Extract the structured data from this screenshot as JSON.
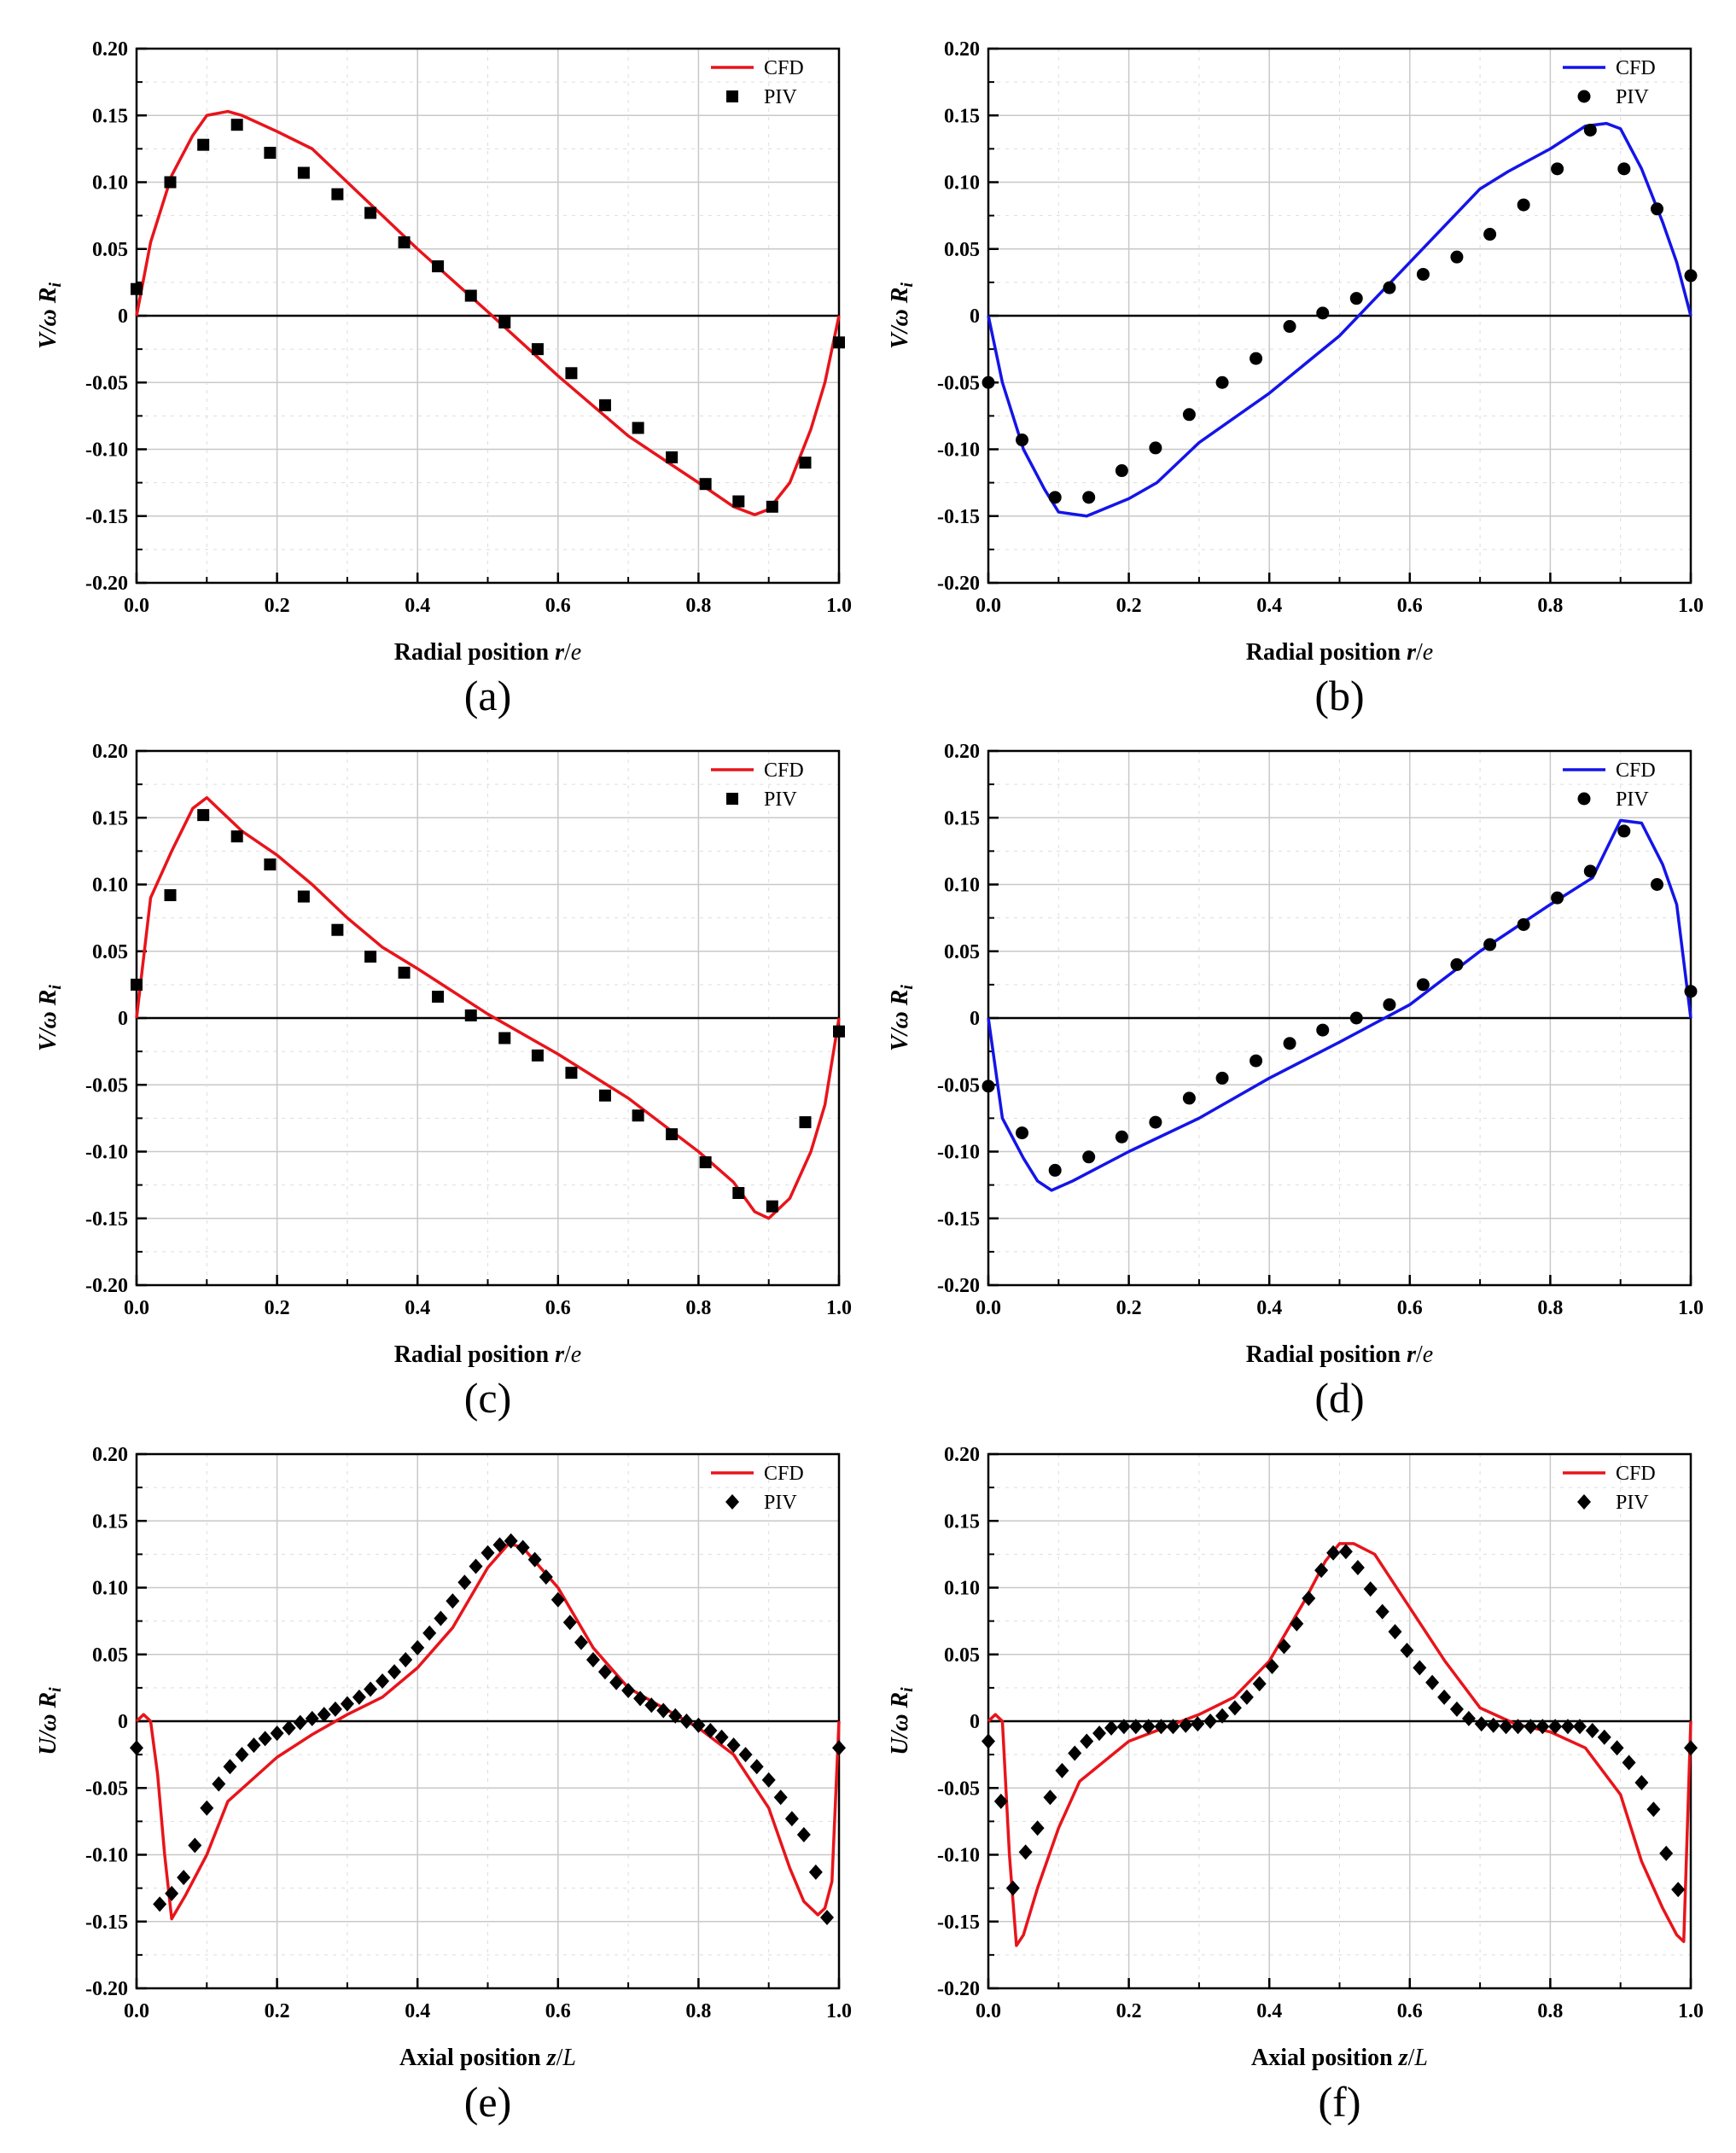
{
  "chart_data": [
    {
      "type": "line",
      "panel_label": "(a)",
      "xlabel": "Radial position r/e",
      "ylabel": "V/ω R_i",
      "xlim": [
        0.0,
        1.0
      ],
      "ylim": [
        -0.2,
        0.2
      ],
      "x_ticks": [
        "0.0",
        "0.2",
        "0.4",
        "0.6",
        "0.8",
        "1.0"
      ],
      "y_ticks": [
        "0.20",
        "0.15",
        "0.10",
        "0.05",
        "0",
        "-0.05",
        "-0.10",
        "-0.15",
        "-0.20"
      ],
      "grid": true,
      "legend_position": "top-right",
      "series": [
        {
          "name": "CFD",
          "kind": "line",
          "color": "#e8141b",
          "x": [
            0,
            0.02,
            0.05,
            0.08,
            0.1,
            0.13,
            0.15,
            0.2,
            0.25,
            0.3,
            0.4,
            0.5,
            0.6,
            0.7,
            0.8,
            0.85,
            0.88,
            0.9,
            0.93,
            0.96,
            0.98,
            1.0
          ],
          "y": [
            0,
            0.055,
            0.105,
            0.135,
            0.15,
            0.153,
            0.15,
            0.138,
            0.125,
            0.1,
            0.05,
            0.003,
            -0.045,
            -0.09,
            -0.125,
            -0.143,
            -0.149,
            -0.145,
            -0.125,
            -0.085,
            -0.05,
            0
          ]
        },
        {
          "name": "PIV",
          "kind": "scatter",
          "marker": "square",
          "color": "#000000",
          "x": [
            0.0,
            0.048,
            0.095,
            0.143,
            0.19,
            0.238,
            0.286,
            0.333,
            0.381,
            0.429,
            0.476,
            0.524,
            0.571,
            0.619,
            0.667,
            0.714,
            0.762,
            0.81,
            0.857,
            0.905,
            0.952,
            1.0
          ],
          "y": [
            0.02,
            0.1,
            0.128,
            0.143,
            0.122,
            0.107,
            0.091,
            0.077,
            0.055,
            0.037,
            0.015,
            -0.005,
            -0.025,
            -0.043,
            -0.067,
            -0.084,
            -0.106,
            -0.126,
            -0.139,
            -0.143,
            -0.11,
            -0.02
          ]
        }
      ]
    },
    {
      "type": "line",
      "panel_label": "(b)",
      "xlabel": "Radial position r/e",
      "ylabel": "V/ω R_i",
      "xlim": [
        0.0,
        1.0
      ],
      "ylim": [
        -0.2,
        0.2
      ],
      "x_ticks": [
        "0.0",
        "0.2",
        "0.4",
        "0.6",
        "0.8",
        "1.0"
      ],
      "y_ticks": [
        "0.20",
        "0.15",
        "0.10",
        "0.05",
        "0",
        "-0.05",
        "-0.10",
        "-0.15",
        "-0.20"
      ],
      "grid": true,
      "legend_position": "top-right",
      "series": [
        {
          "name": "CFD",
          "kind": "line",
          "color": "#1414e8",
          "x": [
            0,
            0.02,
            0.05,
            0.08,
            0.1,
            0.14,
            0.2,
            0.24,
            0.3,
            0.4,
            0.5,
            0.6,
            0.7,
            0.74,
            0.8,
            0.85,
            0.88,
            0.9,
            0.93,
            0.96,
            0.98,
            1.0
          ],
          "y": [
            0,
            -0.05,
            -0.1,
            -0.13,
            -0.147,
            -0.15,
            -0.137,
            -0.125,
            -0.095,
            -0.058,
            -0.015,
            0.04,
            0.095,
            0.108,
            0.125,
            0.142,
            0.144,
            0.14,
            0.11,
            0.07,
            0.04,
            0
          ]
        },
        {
          "name": "PIV",
          "kind": "scatter",
          "marker": "circle",
          "color": "#000000",
          "x": [
            0.0,
            0.048,
            0.095,
            0.143,
            0.19,
            0.238,
            0.286,
            0.333,
            0.381,
            0.429,
            0.476,
            0.524,
            0.571,
            0.619,
            0.667,
            0.714,
            0.762,
            0.81,
            0.857,
            0.905,
            0.952,
            1.0
          ],
          "y": [
            -0.05,
            -0.093,
            -0.136,
            -0.136,
            -0.116,
            -0.099,
            -0.074,
            -0.05,
            -0.032,
            -0.008,
            0.002,
            0.013,
            0.021,
            0.031,
            0.044,
            0.061,
            0.083,
            0.11,
            0.139,
            0.11,
            0.08,
            0.03
          ]
        }
      ]
    },
    {
      "type": "line",
      "panel_label": "(c)",
      "xlabel": "Radial position r/e",
      "ylabel": "V/ω R_i",
      "xlim": [
        0.0,
        1.0
      ],
      "ylim": [
        -0.2,
        0.2
      ],
      "x_ticks": [
        "0.0",
        "0.2",
        "0.4",
        "0.6",
        "0.8",
        "1.0"
      ],
      "y_ticks": [
        "0.20",
        "0.15",
        "0.10",
        "0.05",
        "0",
        "-0.05",
        "-0.10",
        "-0.15",
        "-0.20"
      ],
      "grid": true,
      "legend_position": "top-right",
      "series": [
        {
          "name": "CFD",
          "kind": "line",
          "color": "#e8141b",
          "x": [
            0,
            0.02,
            0.05,
            0.08,
            0.1,
            0.12,
            0.15,
            0.2,
            0.25,
            0.3,
            0.35,
            0.4,
            0.5,
            0.6,
            0.7,
            0.8,
            0.85,
            0.88,
            0.9,
            0.93,
            0.96,
            0.98,
            1.0
          ],
          "y": [
            0,
            0.09,
            0.125,
            0.157,
            0.165,
            0.155,
            0.14,
            0.122,
            0.1,
            0.075,
            0.053,
            0.037,
            0.003,
            -0.027,
            -0.06,
            -0.1,
            -0.123,
            -0.145,
            -0.15,
            -0.135,
            -0.1,
            -0.065,
            0
          ]
        },
        {
          "name": "PIV",
          "kind": "scatter",
          "marker": "square",
          "color": "#000000",
          "x": [
            0.0,
            0.048,
            0.095,
            0.143,
            0.19,
            0.238,
            0.286,
            0.333,
            0.381,
            0.429,
            0.476,
            0.524,
            0.571,
            0.619,
            0.667,
            0.714,
            0.762,
            0.81,
            0.857,
            0.905,
            0.952,
            1.0
          ],
          "y": [
            0.025,
            0.092,
            0.152,
            0.136,
            0.115,
            0.091,
            0.066,
            0.046,
            0.034,
            0.016,
            0.002,
            -0.015,
            -0.028,
            -0.041,
            -0.058,
            -0.073,
            -0.087,
            -0.108,
            -0.131,
            -0.141,
            -0.078,
            -0.01
          ]
        }
      ]
    },
    {
      "type": "line",
      "panel_label": "(d)",
      "xlabel": "Radial position r/e",
      "ylabel": "V/ω R_i",
      "xlim": [
        0.0,
        1.0
      ],
      "ylim": [
        -0.2,
        0.2
      ],
      "x_ticks": [
        "0.0",
        "0.2",
        "0.4",
        "0.6",
        "0.8",
        "1.0"
      ],
      "y_ticks": [
        "0.20",
        "0.15",
        "0.10",
        "0.05",
        "0",
        "-0.05",
        "-0.10",
        "-0.15",
        "-0.20"
      ],
      "grid": true,
      "legend_position": "top-right",
      "series": [
        {
          "name": "CFD",
          "kind": "line",
          "color": "#1414e8",
          "x": [
            0,
            0.02,
            0.05,
            0.07,
            0.09,
            0.12,
            0.2,
            0.3,
            0.4,
            0.5,
            0.55,
            0.6,
            0.7,
            0.8,
            0.86,
            0.9,
            0.93,
            0.96,
            0.98,
            1.0
          ],
          "y": [
            0,
            -0.075,
            -0.105,
            -0.122,
            -0.129,
            -0.122,
            -0.1,
            -0.075,
            -0.045,
            -0.018,
            -0.004,
            0.01,
            0.05,
            0.085,
            0.105,
            0.148,
            0.146,
            0.115,
            0.085,
            0
          ]
        },
        {
          "name": "PIV",
          "kind": "scatter",
          "marker": "circle",
          "color": "#000000",
          "x": [
            0.0,
            0.048,
            0.095,
            0.143,
            0.19,
            0.238,
            0.286,
            0.333,
            0.381,
            0.429,
            0.476,
            0.524,
            0.571,
            0.619,
            0.667,
            0.714,
            0.762,
            0.81,
            0.857,
            0.905,
            0.952,
            1.0
          ],
          "y": [
            -0.051,
            -0.086,
            -0.114,
            -0.104,
            -0.089,
            -0.078,
            -0.06,
            -0.045,
            -0.032,
            -0.019,
            -0.009,
            0.0,
            0.01,
            0.025,
            0.04,
            0.055,
            0.07,
            0.09,
            0.11,
            0.14,
            0.1,
            0.02
          ]
        }
      ]
    },
    {
      "type": "line",
      "panel_label": "(e)",
      "xlabel": "Axial position z/L",
      "ylabel": "U/ω R_i",
      "xlim": [
        0.0,
        1.0
      ],
      "ylim": [
        -0.2,
        0.2
      ],
      "x_ticks": [
        "0.0",
        "0.2",
        "0.4",
        "0.6",
        "0.8",
        "1.0"
      ],
      "y_ticks": [
        "0.20",
        "0.15",
        "0.10",
        "0.05",
        "0",
        "-0.05",
        "-0.10",
        "-0.15",
        "-0.20"
      ],
      "grid": true,
      "legend_position": "top-right",
      "series": [
        {
          "name": "CFD",
          "kind": "line",
          "color": "#e8141b",
          "x": [
            0,
            0.01,
            0.02,
            0.03,
            0.04,
            0.05,
            0.07,
            0.1,
            0.13,
            0.2,
            0.25,
            0.3,
            0.35,
            0.4,
            0.45,
            0.5,
            0.53,
            0.55,
            0.6,
            0.65,
            0.7,
            0.75,
            0.8,
            0.85,
            0.9,
            0.93,
            0.95,
            0.97,
            0.98,
            0.99,
            1.0
          ],
          "y": [
            0,
            0.005,
            0.0,
            -0.04,
            -0.1,
            -0.148,
            -0.13,
            -0.1,
            -0.06,
            -0.027,
            -0.01,
            0.005,
            0.018,
            0.04,
            0.07,
            0.115,
            0.133,
            0.13,
            0.1,
            0.055,
            0.025,
            0.01,
            -0.005,
            -0.025,
            -0.065,
            -0.11,
            -0.135,
            -0.145,
            -0.14,
            -0.12,
            0
          ]
        },
        {
          "name": "PIV",
          "kind": "scatter",
          "marker": "diamond",
          "color": "#000000",
          "x": [
            0.0,
            0.033,
            0.05,
            0.067,
            0.083,
            0.1,
            0.117,
            0.133,
            0.15,
            0.167,
            0.183,
            0.2,
            0.217,
            0.233,
            0.25,
            0.267,
            0.283,
            0.3,
            0.317,
            0.333,
            0.35,
            0.367,
            0.383,
            0.4,
            0.417,
            0.433,
            0.45,
            0.467,
            0.483,
            0.5,
            0.517,
            0.533,
            0.55,
            0.567,
            0.583,
            0.6,
            0.617,
            0.633,
            0.65,
            0.667,
            0.683,
            0.7,
            0.717,
            0.733,
            0.75,
            0.767,
            0.783,
            0.8,
            0.817,
            0.833,
            0.85,
            0.867,
            0.883,
            0.9,
            0.917,
            0.933,
            0.95,
            0.967,
            0.983,
            1.0
          ],
          "y": [
            -0.02,
            -0.137,
            -0.129,
            -0.117,
            -0.093,
            -0.065,
            -0.047,
            -0.034,
            -0.025,
            -0.018,
            -0.013,
            -0.009,
            -0.005,
            -0.001,
            0.002,
            0.005,
            0.009,
            0.013,
            0.018,
            0.024,
            0.03,
            0.037,
            0.046,
            0.055,
            0.066,
            0.077,
            0.09,
            0.104,
            0.116,
            0.126,
            0.132,
            0.135,
            0.13,
            0.121,
            0.108,
            0.091,
            0.074,
            0.059,
            0.046,
            0.037,
            0.029,
            0.023,
            0.017,
            0.012,
            0.008,
            0.004,
            0.0,
            -0.003,
            -0.007,
            -0.012,
            -0.018,
            -0.025,
            -0.034,
            -0.044,
            -0.057,
            -0.073,
            -0.085,
            -0.113,
            -0.147,
            -0.02
          ]
        }
      ]
    },
    {
      "type": "line",
      "panel_label": "(f)",
      "xlabel": "Axial position z/L",
      "ylabel": "U/ω R_i",
      "xlim": [
        0.0,
        1.0
      ],
      "ylim": [
        -0.2,
        0.2
      ],
      "x_ticks": [
        "0.0",
        "0.2",
        "0.4",
        "0.6",
        "0.8",
        "1.0"
      ],
      "y_ticks": [
        "0.20",
        "0.15",
        "0.10",
        "0.05",
        "0",
        "-0.05",
        "-0.10",
        "-0.15",
        "-0.20"
      ],
      "grid": true,
      "legend_position": "top-right",
      "series": [
        {
          "name": "CFD",
          "kind": "line",
          "color": "#e8141b",
          "x": [
            0,
            0.01,
            0.02,
            0.03,
            0.04,
            0.05,
            0.07,
            0.1,
            0.13,
            0.2,
            0.25,
            0.3,
            0.35,
            0.4,
            0.45,
            0.48,
            0.5,
            0.52,
            0.55,
            0.6,
            0.65,
            0.7,
            0.75,
            0.8,
            0.85,
            0.9,
            0.93,
            0.96,
            0.98,
            0.99,
            1.0
          ],
          "y": [
            0,
            0.005,
            0.0,
            -0.1,
            -0.168,
            -0.16,
            -0.125,
            -0.08,
            -0.045,
            -0.015,
            -0.005,
            0.005,
            0.018,
            0.045,
            0.09,
            0.12,
            0.133,
            0.133,
            0.125,
            0.085,
            0.045,
            0.01,
            -0.002,
            -0.008,
            -0.02,
            -0.055,
            -0.105,
            -0.14,
            -0.16,
            -0.165,
            0
          ]
        },
        {
          "name": "PIV",
          "kind": "scatter",
          "marker": "diamond",
          "color": "#000000",
          "x": [
            0.0,
            0.018,
            0.035,
            0.053,
            0.07,
            0.088,
            0.105,
            0.123,
            0.14,
            0.158,
            0.175,
            0.193,
            0.21,
            0.228,
            0.246,
            0.263,
            0.281,
            0.298,
            0.316,
            0.333,
            0.351,
            0.368,
            0.386,
            0.404,
            0.421,
            0.439,
            0.456,
            0.474,
            0.491,
            0.509,
            0.526,
            0.544,
            0.561,
            0.579,
            0.596,
            0.614,
            0.632,
            0.649,
            0.667,
            0.684,
            0.702,
            0.719,
            0.737,
            0.754,
            0.772,
            0.789,
            0.807,
            0.825,
            0.842,
            0.86,
            0.877,
            0.895,
            0.912,
            0.93,
            0.947,
            0.965,
            0.982,
            1.0
          ],
          "y": [
            -0.015,
            -0.06,
            -0.125,
            -0.098,
            -0.08,
            -0.057,
            -0.037,
            -0.024,
            -0.015,
            -0.009,
            -0.005,
            -0.004,
            -0.004,
            -0.004,
            -0.004,
            -0.004,
            -0.003,
            -0.002,
            0.0,
            0.004,
            0.01,
            0.018,
            0.028,
            0.041,
            0.056,
            0.073,
            0.092,
            0.113,
            0.126,
            0.127,
            0.115,
            0.099,
            0.082,
            0.067,
            0.053,
            0.04,
            0.029,
            0.018,
            0.009,
            0.002,
            -0.002,
            -0.003,
            -0.004,
            -0.004,
            -0.004,
            -0.004,
            -0.004,
            -0.004,
            -0.004,
            -0.007,
            -0.012,
            -0.02,
            -0.031,
            -0.046,
            -0.066,
            -0.099,
            -0.126,
            -0.02
          ]
        }
      ]
    }
  ]
}
